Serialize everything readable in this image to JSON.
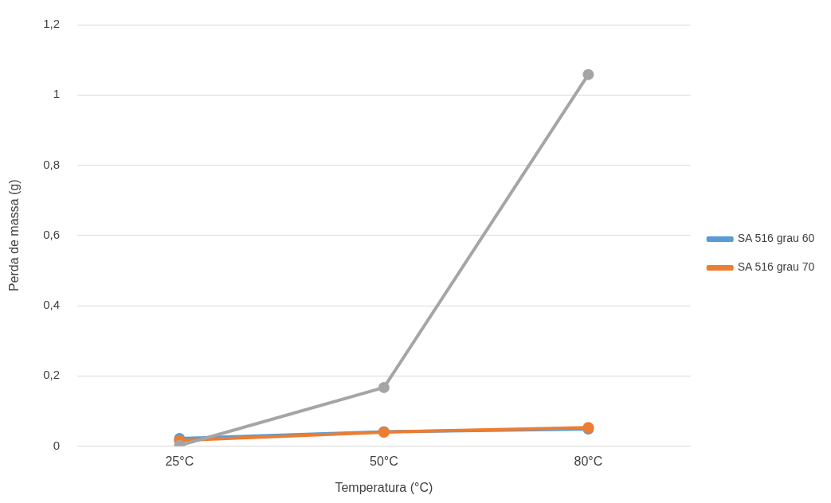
{
  "chart_data": {
    "type": "line",
    "xlabel": "Temperatura (°C)",
    "ylabel": "Perda de massa (g)",
    "categories": [
      "25°C",
      "50°C",
      "80°C"
    ],
    "series": [
      {
        "name": "SA 516 grau 60",
        "color": "#5b9bd5",
        "values": [
          0.022,
          0.041,
          0.049
        ]
      },
      {
        "name": "SA 516 grau 70",
        "color": "#ed7d31",
        "values": [
          0.016,
          0.04,
          0.053
        ]
      },
      {
        "color": "#a5a5a5",
        "values": [
          0.002,
          0.167,
          1.058
        ]
      }
    ],
    "ylim": [
      0,
      1.2
    ],
    "yticks": [
      0,
      {
        "value": 0.2,
        "label": "0,2"
      },
      {
        "value": 0.4,
        "label": "0,4"
      },
      {
        "value": 0.6,
        "label": "0,6"
      },
      {
        "value": 0.8,
        "label": "0,8"
      },
      1,
      {
        "value": 1.2,
        "label": "1,2"
      }
    ],
    "grid": "y",
    "legend": "right",
    "marker": "circle",
    "line_style": "solid"
  }
}
